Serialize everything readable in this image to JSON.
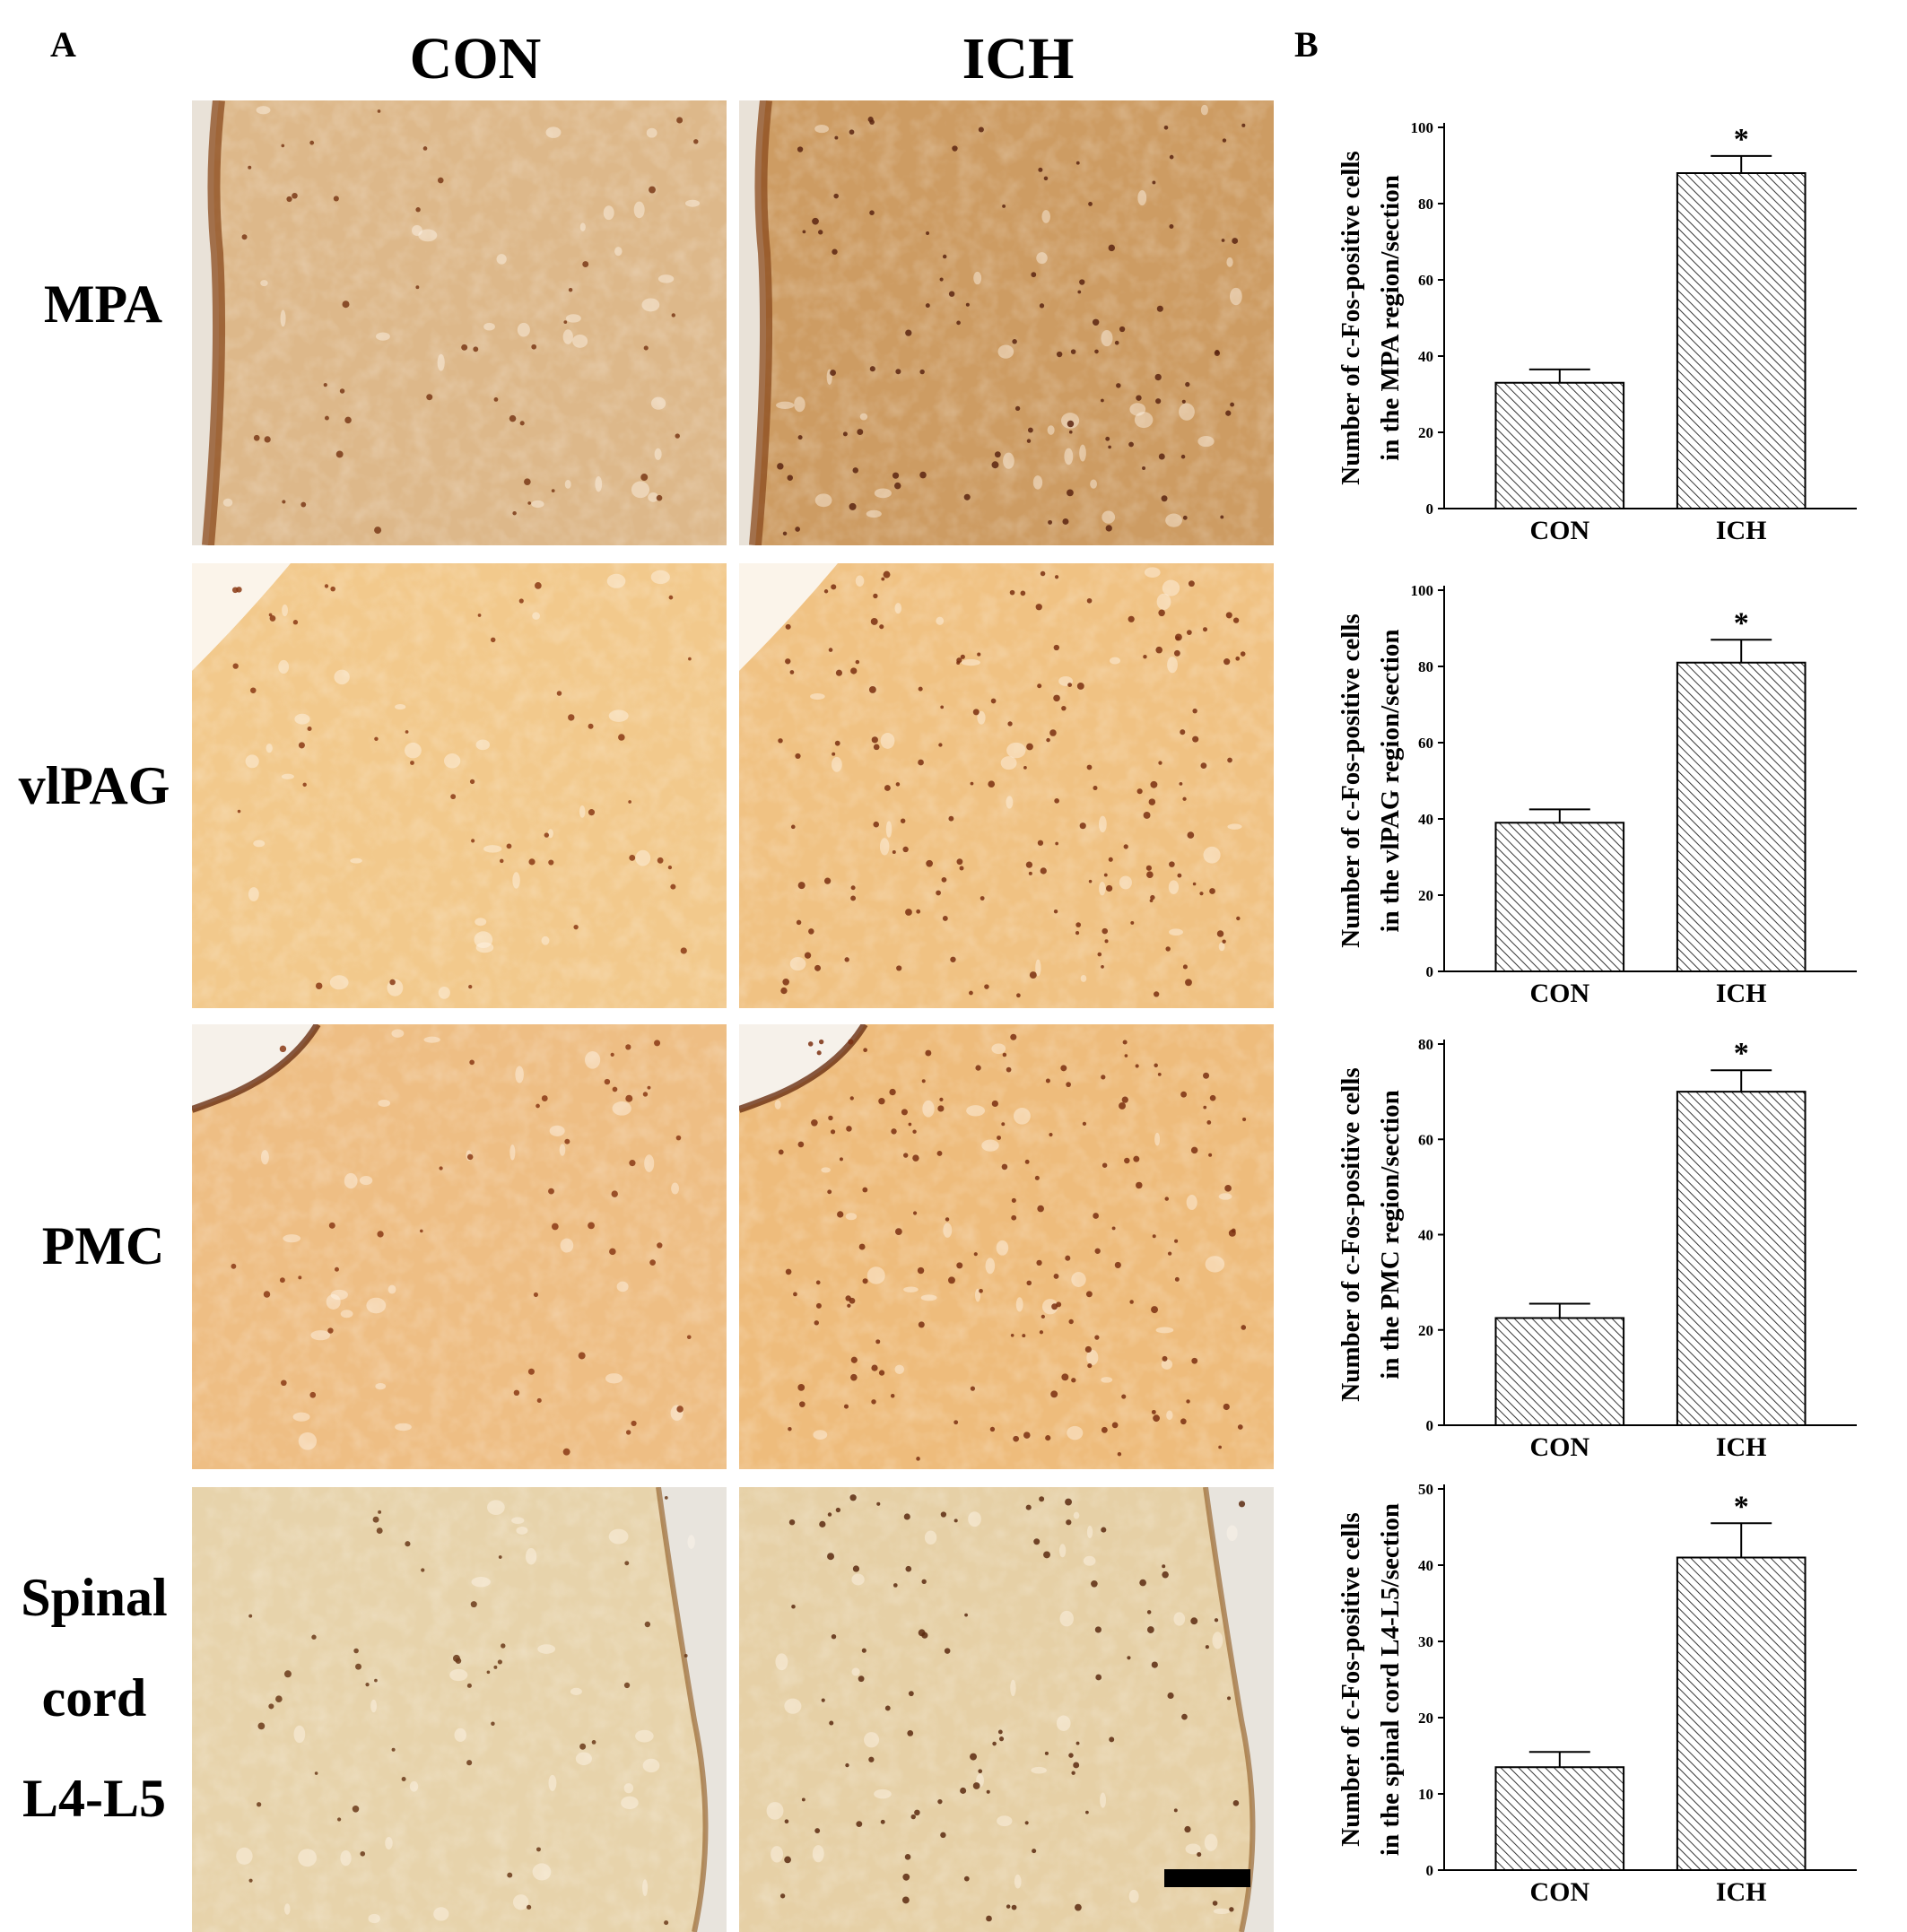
{
  "panels": {
    "a": "A",
    "b": "B"
  },
  "columns": [
    "CON",
    "ICH"
  ],
  "rows": [
    {
      "lines": [
        "MPA"
      ]
    },
    {
      "lines": [
        "vlPAG"
      ]
    },
    {
      "lines": [
        "PMC"
      ]
    },
    {
      "lines": [
        "Spinal",
        "cord",
        "L4-L5"
      ]
    }
  ],
  "micrographs": [
    {
      "tissue": "MPA",
      "group": "CON",
      "bg": "#ddb88a",
      "dot_color": "#7a3a18",
      "density": "sparse",
      "dark_edge": "left"
    },
    {
      "tissue": "MPA",
      "group": "ICH",
      "bg": "#cd9c63",
      "dot_color": "#5a2410",
      "density": "moderate",
      "dark_edge": "left"
    },
    {
      "tissue": "vlPAG",
      "group": "CON",
      "bg": "#f2c98c",
      "dot_color": "#8a3a15",
      "density": "sparse",
      "dark_edge": "none"
    },
    {
      "tissue": "vlPAG",
      "group": "ICH",
      "bg": "#f0c283",
      "dot_color": "#7a2f10",
      "density": "dense",
      "dark_edge": "none"
    },
    {
      "tissue": "PMC",
      "group": "CON",
      "bg": "#eebe84",
      "dot_color": "#8a3a15",
      "density": "sparse",
      "dark_edge": "top"
    },
    {
      "tissue": "PMC",
      "group": "ICH",
      "bg": "#eebc7c",
      "dot_color": "#7a2f10",
      "density": "dense",
      "dark_edge": "top"
    },
    {
      "tissue": "Spinal cord L4-L5",
      "group": "CON",
      "bg": "#e7d3ab",
      "dot_color": "#6a3a1a",
      "density": "sparse",
      "dark_edge": "right"
    },
    {
      "tissue": "Spinal cord L4-L5",
      "group": "ICH",
      "bg": "#e6d0a6",
      "dot_color": "#5a2a10",
      "density": "moderate",
      "dark_edge": "right"
    }
  ],
  "scale_bar": true,
  "chart_data": [
    {
      "type": "bar",
      "categories": [
        "CON",
        "ICH"
      ],
      "values": [
        33,
        88
      ],
      "errors": [
        3.5,
        4.5
      ],
      "ylim": [
        0,
        100
      ],
      "yticks": [
        "0",
        "20",
        "40",
        "60",
        "80",
        "100"
      ],
      "ylabel_lines": [
        "Number of c-Fos-positive cells",
        "in the MPA region/section"
      ],
      "significance": [
        "",
        "*"
      ],
      "pattern": "diagonal hatch"
    },
    {
      "type": "bar",
      "categories": [
        "CON",
        "ICH"
      ],
      "values": [
        39,
        81
      ],
      "errors": [
        3.5,
        6
      ],
      "ylim": [
        0,
        100
      ],
      "yticks": [
        "0",
        "20",
        "40",
        "60",
        "80",
        "100"
      ],
      "ylabel_lines": [
        "Number of c-Fos-positive cells",
        "in the vlPAG region/section"
      ],
      "significance": [
        "",
        "*"
      ],
      "pattern": "diagonal hatch"
    },
    {
      "type": "bar",
      "categories": [
        "CON",
        "ICH"
      ],
      "values": [
        22.5,
        70
      ],
      "errors": [
        3,
        4.5
      ],
      "ylim": [
        0,
        80
      ],
      "yticks": [
        "0",
        "20",
        "40",
        "60",
        "80"
      ],
      "ylabel_lines": [
        "Number of c-Fos-positive cells",
        "in the PMC region/section"
      ],
      "significance": [
        "",
        "*"
      ],
      "pattern": "diagonal hatch"
    },
    {
      "type": "bar",
      "categories": [
        "CON",
        "ICH"
      ],
      "values": [
        13.5,
        41
      ],
      "errors": [
        2,
        4.5
      ],
      "ylim": [
        0,
        50
      ],
      "yticks": [
        "0",
        "10",
        "20",
        "30",
        "40",
        "50"
      ],
      "ylabel_lines": [
        "Number of c-Fos-positive cells",
        "in the spinal cord L4-L5/section"
      ],
      "significance": [
        "",
        "*"
      ],
      "pattern": "diagonal hatch"
    }
  ]
}
